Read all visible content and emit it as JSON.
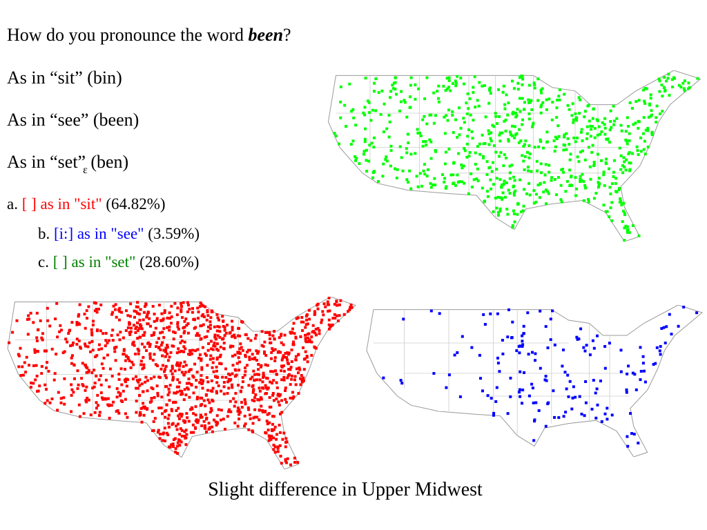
{
  "question": {
    "text": "How do you pronounce the word",
    "emphasis": "been",
    "end": "?"
  },
  "options": [
    {
      "text": "As in “sit” (bin)"
    },
    {
      "text": "As in “see” (been)"
    },
    {
      "text": "As in “set”",
      "symbol": "ɛ",
      "end": "(ben)"
    }
  ],
  "answers": [
    {
      "letter": "a.",
      "label": "[ ] as in \"sit\"",
      "percent": "(64.82%)"
    },
    {
      "letter": "b.",
      "label": "[i:] as in \"see\"",
      "percent": "(3.59%)"
    },
    {
      "letter": "c.",
      "label": "[ ] as in \"set\"",
      "percent": "(28.60%)"
    }
  ],
  "caption": "Slight difference in Upper Midwest"
}
